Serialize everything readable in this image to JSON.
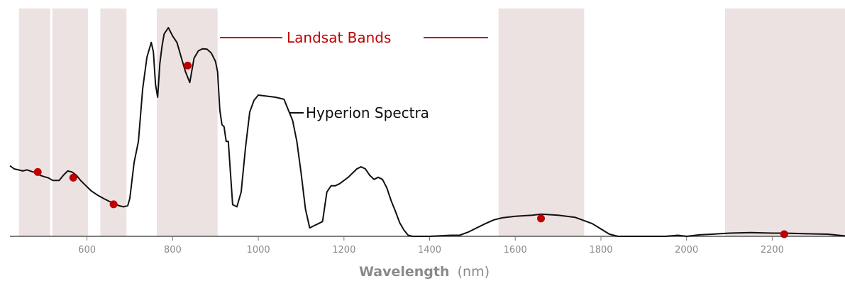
{
  "chart_data": {
    "type": "line",
    "xlabel": "Wavelength",
    "xlabel_unit": "(nm)",
    "xlim": [
      420,
      2370
    ],
    "ylim": [
      0,
      1
    ],
    "x_ticks": [
      600,
      800,
      1000,
      1200,
      1400,
      1600,
      1800,
      2000,
      2200
    ],
    "grid": false,
    "colors": {
      "band_fill": "#ede2e2",
      "landsat_red": "#c00000",
      "line": "#111111",
      "axis": "#555555",
      "tick_text": "#8a8a8a"
    },
    "annotations": {
      "landsat": "Landsat Bands",
      "hyperion": "Hyperion Spectra"
    },
    "landsat_bands": [
      {
        "x0": 441,
        "x1": 514
      },
      {
        "x0": 519,
        "x1": 602
      },
      {
        "x0": 631,
        "x1": 692
      },
      {
        "x0": 763,
        "x1": 905
      },
      {
        "x0": 1561,
        "x1": 1761
      },
      {
        "x0": 2090,
        "x1": 2370
      }
    ],
    "series": [
      {
        "x": [
          420,
          430,
          440,
          450,
          460,
          475,
          490,
          500,
          510,
          520,
          535,
          545,
          555,
          565,
          575,
          585,
          595,
          610,
          625,
          640,
          655,
          665,
          675,
          685,
          695,
          700,
          710,
          720,
          730,
          740,
          750,
          755,
          760,
          765,
          770,
          775,
          780,
          790,
          800,
          810,
          820,
          830,
          840,
          850,
          860,
          870,
          880,
          890,
          900,
          905,
          910,
          915,
          920,
          925,
          930,
          940,
          950,
          960,
          970,
          980,
          990,
          1000,
          1020,
          1040,
          1060,
          1070,
          1080,
          1090,
          1100,
          1110,
          1120,
          1130,
          1140,
          1150,
          1160,
          1170,
          1180,
          1190,
          1200,
          1210,
          1220,
          1230,
          1240,
          1250,
          1260,
          1270,
          1280,
          1290,
          1300,
          1310,
          1320,
          1330,
          1340,
          1350,
          1360,
          1400,
          1450,
          1470,
          1490,
          1510,
          1530,
          1550,
          1570,
          1600,
          1640,
          1660,
          1700,
          1740,
          1760,
          1780,
          1800,
          1820,
          1840,
          1880,
          1950,
          1980,
          2000,
          2030,
          2060,
          2100,
          2150,
          2200,
          2230,
          2280,
          2330,
          2370
        ],
        "y": [
          0.335,
          0.32,
          0.315,
          0.31,
          0.315,
          0.305,
          0.29,
          0.283,
          0.277,
          0.265,
          0.265,
          0.29,
          0.31,
          0.305,
          0.29,
          0.265,
          0.245,
          0.215,
          0.195,
          0.178,
          0.163,
          0.154,
          0.145,
          0.14,
          0.145,
          0.18,
          0.35,
          0.45,
          0.7,
          0.85,
          0.92,
          0.875,
          0.72,
          0.66,
          0.82,
          0.9,
          0.96,
          0.99,
          0.95,
          0.92,
          0.85,
          0.78,
          0.73,
          0.845,
          0.88,
          0.89,
          0.888,
          0.87,
          0.83,
          0.78,
          0.6,
          0.53,
          0.52,
          0.45,
          0.45,
          0.15,
          0.14,
          0.21,
          0.42,
          0.59,
          0.645,
          0.67,
          0.665,
          0.66,
          0.65,
          0.6,
          0.55,
          0.45,
          0.3,
          0.13,
          0.04,
          0.05,
          0.06,
          0.07,
          0.21,
          0.24,
          0.24,
          0.25,
          0.265,
          0.28,
          0.3,
          0.32,
          0.33,
          0.32,
          0.29,
          0.27,
          0.28,
          0.27,
          0.23,
          0.17,
          0.12,
          0.065,
          0.03,
          0.005,
          0.0,
          0.0,
          0.005,
          0.005,
          0.02,
          0.04,
          0.06,
          0.078,
          0.088,
          0.095,
          0.1,
          0.105,
          0.1,
          0.09,
          0.075,
          0.06,
          0.035,
          0.01,
          0.0,
          0.0,
          0.0,
          0.005,
          0.0,
          0.007,
          0.01,
          0.015,
          0.018,
          0.015,
          0.015,
          0.012,
          0.01,
          0.002
        ]
      }
    ],
    "landsat_points": [
      {
        "x": 485,
        "y": 0.305
      },
      {
        "x": 568,
        "y": 0.278
      },
      {
        "x": 662,
        "y": 0.152
      },
      {
        "x": 835,
        "y": 0.81
      },
      {
        "x": 1660,
        "y": 0.085
      },
      {
        "x": 2228,
        "y": 0.01
      }
    ]
  }
}
